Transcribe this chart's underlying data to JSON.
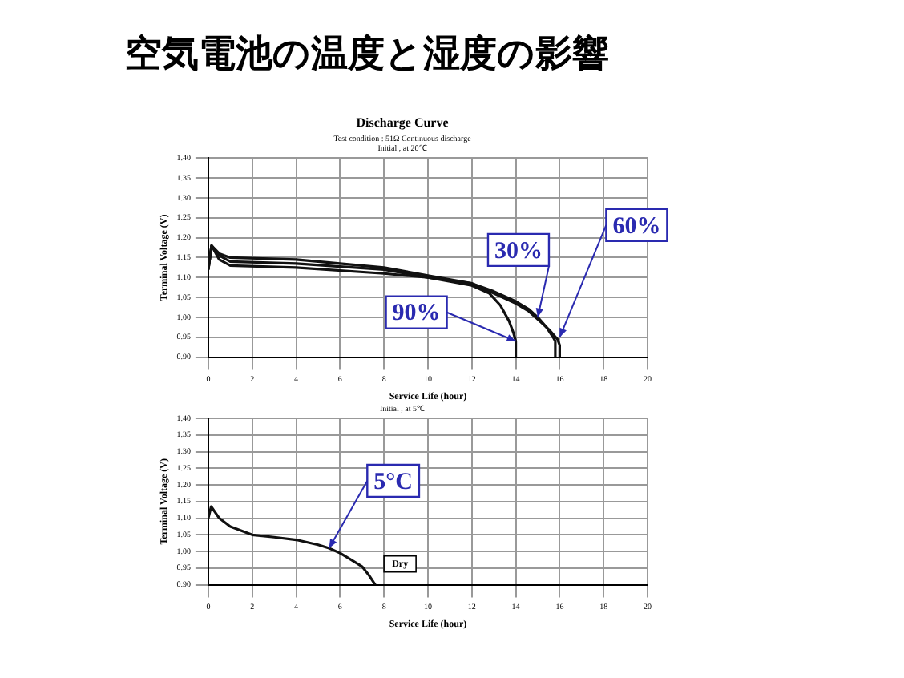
{
  "chart_data": [
    {
      "type": "other",
      "title": "空気電池の温度と湿度の影響"
    },
    {
      "type": "line",
      "title": "Discharge Curve",
      "subtitle": "Test condition : 51Ω Continuous discharge\nInitial , at 20℃",
      "xlabel": "Service Life (hour)",
      "ylabel": "Terminal Voltage (V)",
      "series": [
        {
          "color": "#111111",
          "x": [
            0,
            0.15,
            0.5,
            1,
            4,
            8,
            10,
            12,
            13,
            14,
            14.6,
            15,
            15.4,
            15.7,
            15.8,
            15.8
          ],
          "values": [
            1.12,
            1.18,
            1.16,
            1.15,
            1.145,
            1.125,
            1.105,
            1.085,
            1.065,
            1.04,
            1.02,
            1.0,
            0.975,
            0.95,
            0.94,
            0.9
          ]
        },
        {
          "color": "#111111",
          "x": [
            0,
            0.15,
            0.5,
            1,
            4,
            8,
            10,
            12,
            13,
            14,
            14.6,
            15,
            15.5,
            15.9,
            16.0,
            16.0
          ],
          "values": [
            1.12,
            1.18,
            1.155,
            1.14,
            1.135,
            1.12,
            1.1,
            1.085,
            1.06,
            1.035,
            1.015,
            0.995,
            0.97,
            0.945,
            0.93,
            0.9
          ]
        },
        {
          "color": "#111111",
          "x": [
            0,
            0.15,
            0.5,
            1,
            4,
            8,
            10,
            12,
            12.8,
            13.3,
            13.7,
            13.9,
            14.0,
            14.0
          ],
          "values": [
            1.12,
            1.18,
            1.145,
            1.13,
            1.125,
            1.11,
            1.1,
            1.08,
            1.06,
            1.03,
            0.99,
            0.96,
            0.94,
            0.9
          ]
        }
      ],
      "xlim": [
        0,
        20
      ],
      "xticks": [
        0,
        2,
        4,
        6,
        8,
        10,
        12,
        14,
        16,
        18,
        20
      ],
      "ylim": [
        0.9,
        1.4
      ],
      "yticks": [
        {
          "value": 0.9,
          "label": "0.90"
        },
        {
          "value": 0.95,
          "label": "0.95"
        },
        {
          "value": 1.0,
          "label": "1.00"
        },
        {
          "value": 1.05,
          "label": "1.05"
        },
        {
          "value": 1.1,
          "label": "1.10"
        },
        {
          "value": 1.15,
          "label": "1.15"
        },
        {
          "value": 1.2,
          "label": "1.20"
        },
        {
          "value": 1.25,
          "label": "1.25"
        },
        {
          "value": 1.3,
          "label": "1.30"
        },
        {
          "value": 1.35,
          "label": "1.35"
        },
        {
          "value": 1.4,
          "label": "1.40"
        }
      ],
      "annotations": [
        {
          "text": "90%",
          "x": 14,
          "y": 0.94
        },
        {
          "text": "30%",
          "x": 15,
          "y": 1.0
        },
        {
          "text": "60%",
          "x": 16,
          "y": 0.95
        }
      ],
      "grid": true,
      "legend": false,
      "marker": "none",
      "line_style": "solid"
    },
    {
      "type": "line",
      "subtitle": "Initial , at 5℃",
      "xlabel": "Service Life (hour)",
      "ylabel": "Terminal Voltage (V)",
      "series": [
        {
          "color": "#111111",
          "x": [
            0,
            0.13,
            0.5,
            1,
            2,
            3,
            4,
            5,
            5.5,
            6,
            6.5,
            7,
            7.3,
            7.6
          ],
          "values": [
            1.1,
            1.135,
            1.1,
            1.075,
            1.05,
            1.043,
            1.035,
            1.02,
            1.01,
            0.995,
            0.975,
            0.955,
            0.93,
            0.9
          ]
        }
      ],
      "xlim": [
        0,
        20
      ],
      "xticks": [
        0,
        2,
        4,
        6,
        8,
        10,
        12,
        14,
        16,
        18,
        20
      ],
      "ylim": [
        0.9,
        1.4
      ],
      "yticks": [
        {
          "value": 0.9,
          "label": "0.90"
        },
        {
          "value": 0.95,
          "label": "0.95"
        },
        {
          "value": 1.0,
          "label": "1.00"
        },
        {
          "value": 1.05,
          "label": "1.05"
        },
        {
          "value": 1.1,
          "label": "1.10"
        },
        {
          "value": 1.15,
          "label": "1.15"
        },
        {
          "value": 1.2,
          "label": "1.20"
        },
        {
          "value": 1.25,
          "label": "1.25"
        },
        {
          "value": 1.3,
          "label": "1.30"
        },
        {
          "value": 1.35,
          "label": "1.35"
        },
        {
          "value": 1.4,
          "label": "1.40"
        }
      ],
      "annotations": [
        {
          "text": "5°C",
          "x": 5.5,
          "y": 1.01
        },
        "Dry"
      ],
      "grid": true,
      "legend": false,
      "marker": "none",
      "line_style": "solid"
    }
  ]
}
